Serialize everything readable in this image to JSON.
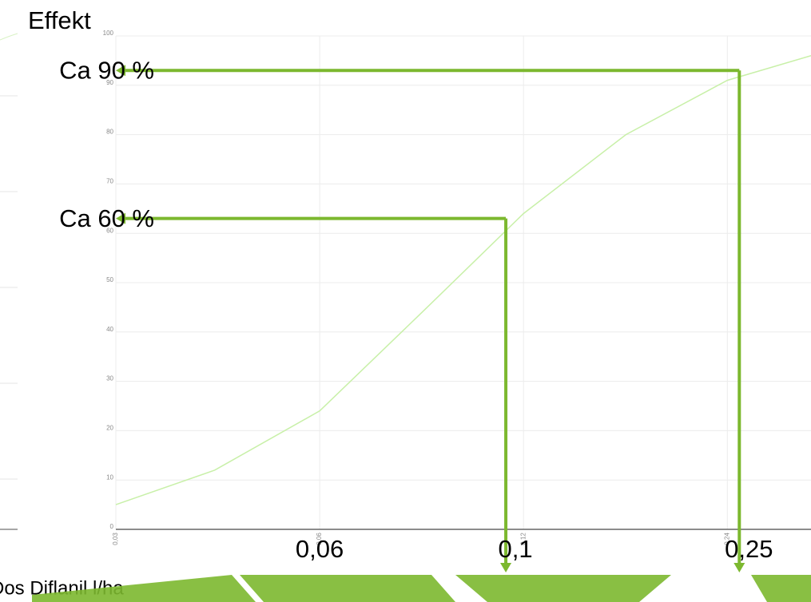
{
  "chart_data": {
    "type": "line",
    "y_label": "Effekt",
    "x_label": "Dos Diflanil l/ha",
    "x_scale": "log",
    "grid": true,
    "x": [
      0.03,
      0.042,
      0.06,
      0.085,
      0.12,
      0.17,
      0.24,
      0.319
    ],
    "series": [
      {
        "name": "Effekt",
        "color": "#c8f0a8",
        "values": [
          5,
          12,
          24,
          44,
          64,
          80,
          91,
          96
        ]
      }
    ],
    "xlim": [
      0.03,
      0.319
    ],
    "ylim": [
      0,
      100
    ],
    "xticks": [
      {
        "value": 0.03,
        "label": "0,03"
      },
      {
        "value": 0.06,
        "label": "0,06"
      },
      {
        "value": 0.12,
        "label": "0,12"
      },
      {
        "value": 0.24,
        "label": "0,24"
      }
    ],
    "yticks": [
      0,
      10,
      20,
      30,
      40,
      50,
      60,
      70,
      80,
      90,
      100
    ],
    "guides": [
      {
        "x": 0.25,
        "y": 93,
        "x_text": "0,25",
        "y_text": "Ca 90 %"
      },
      {
        "x": 0.113,
        "y": 63,
        "x_text": "0,1",
        "y_text": "Ca 60 %"
      }
    ],
    "extra_x_text": {
      "x": 0.06,
      "text": "0,06"
    },
    "arrow_color": "#7cb82f"
  }
}
